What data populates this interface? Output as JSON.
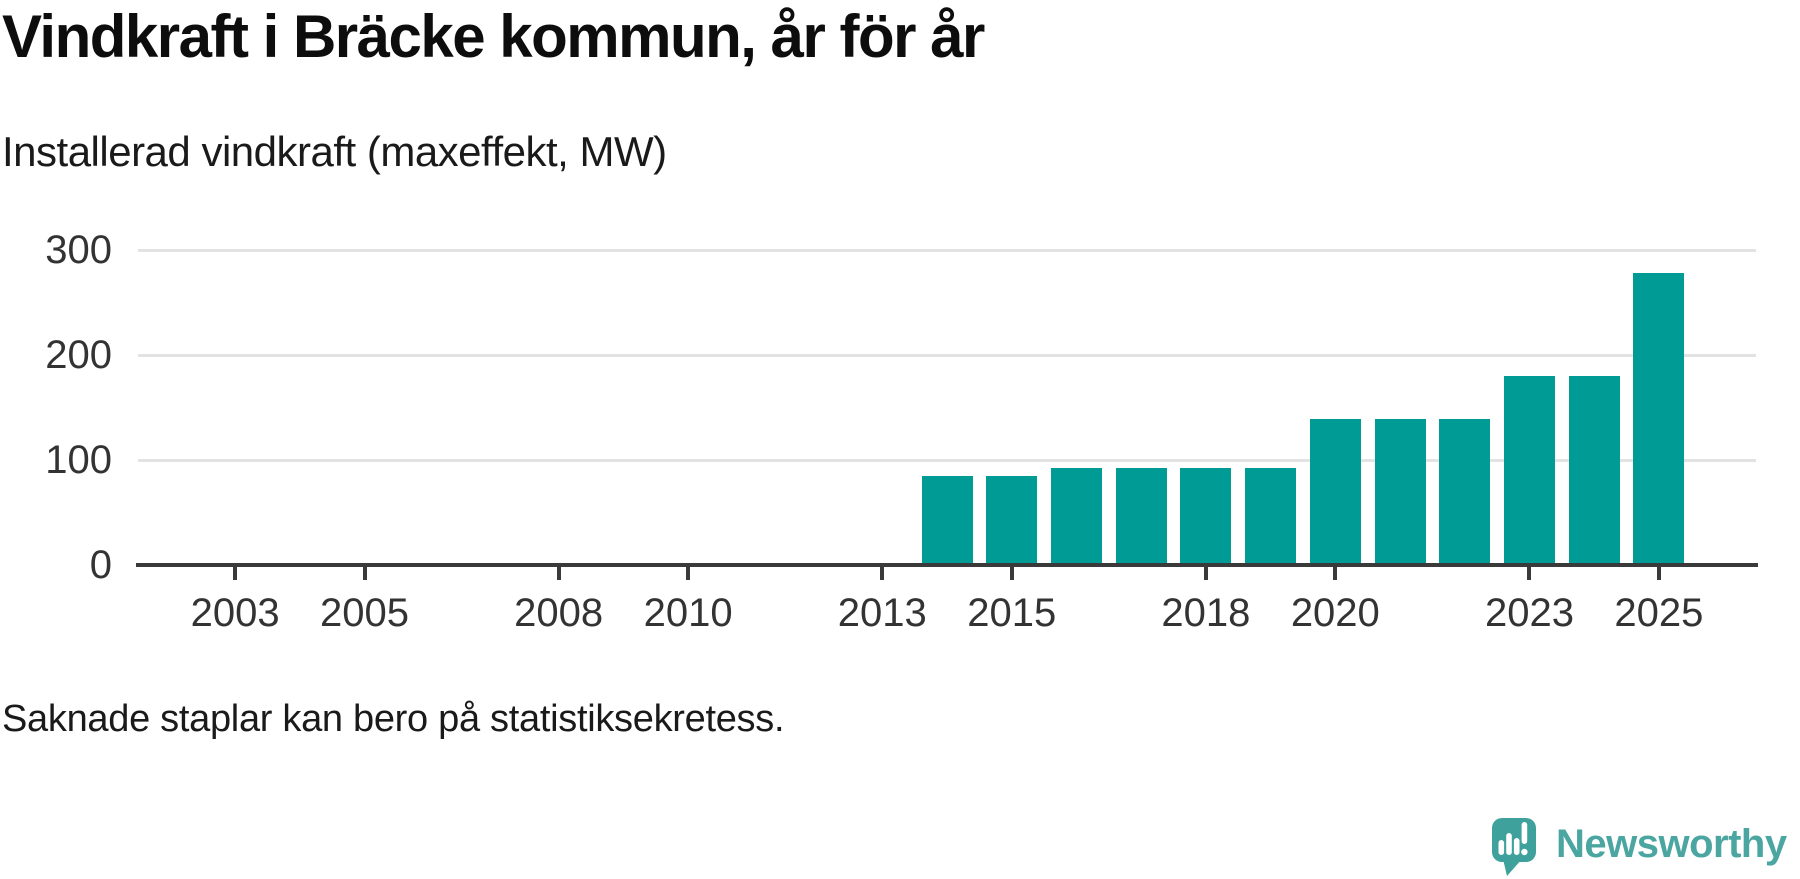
{
  "title": "Vindkraft i Bräcke kommun, år för år",
  "subtitle": "Installerad vindkraft (maxeffekt, MW)",
  "footnote": "Saknade staplar kan bero på statistiksekretess.",
  "branding": {
    "logo_text": "Newsworthy",
    "logo_icon": "newsworthy-speech-bubble-bar-chart-icon"
  },
  "colors": {
    "bar": "#009b94",
    "axis": "#3a3a3a",
    "grid": "#e3e3e3",
    "tick_label": "#333333",
    "text": "#1a1a1a",
    "brand_icon_teal": "#3fa19c",
    "brand_text_teal": "#4ba6a1"
  },
  "chart_data": {
    "type": "bar",
    "title": "Vindkraft i Bräcke kommun, år för år",
    "subtitle": "Installerad vindkraft (maxeffekt, MW)",
    "xlabel": "",
    "ylabel": "Installerad vindkraft (maxeffekt, MW)",
    "x_domain": [
      2002,
      2026
    ],
    "x_ticks": [
      2003,
      2005,
      2008,
      2010,
      2013,
      2015,
      2018,
      2020,
      2023,
      2025
    ],
    "y_ticks": [
      0,
      100,
      200,
      300
    ],
    "ylim": [
      0,
      300
    ],
    "grid": "horizontal-only",
    "legend": "none",
    "series": [
      {
        "name": "Installerad vindkraft (maxeffekt, MW)",
        "points": [
          {
            "year": 2014,
            "value": 85
          },
          {
            "year": 2015,
            "value": 85
          },
          {
            "year": 2016,
            "value": 92
          },
          {
            "year": 2017,
            "value": 92
          },
          {
            "year": 2018,
            "value": 92
          },
          {
            "year": 2019,
            "value": 92
          },
          {
            "year": 2020,
            "value": 139
          },
          {
            "year": 2021,
            "value": 139
          },
          {
            "year": 2022,
            "value": 139
          },
          {
            "year": 2023,
            "value": 180
          },
          {
            "year": 2024,
            "value": 180
          },
          {
            "year": 2025,
            "value": 278
          }
        ]
      }
    ],
    "note": "Saknade staplar kan bero på statistiksekretess."
  }
}
